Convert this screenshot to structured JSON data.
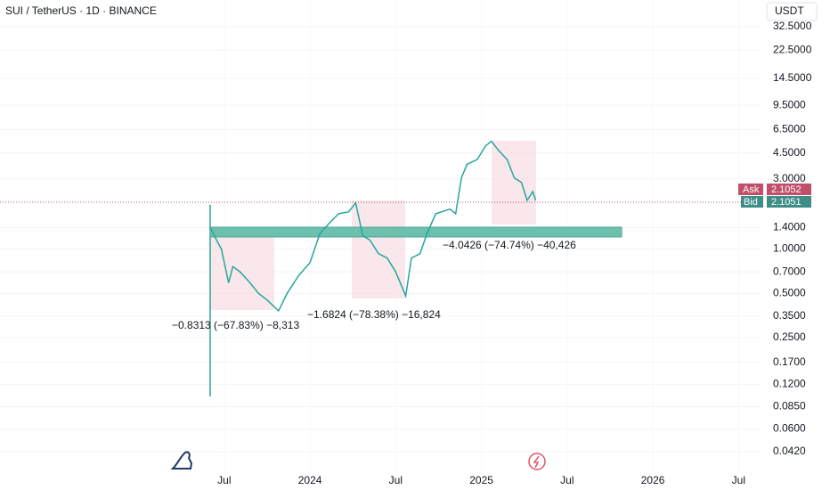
{
  "header": {
    "symbol": "SUI / TetherUS · 1D · BINANCE",
    "currency": "USDT"
  },
  "quote": {
    "ask_label": "Ask",
    "ask": 2.1052,
    "bid_label": "Bid",
    "bid": 2.1051
  },
  "chart_data": {
    "type": "line",
    "log_scale": true,
    "grid": true,
    "annotations": [
      "−0.8313 (−67.83%) −8,313",
      "−1.6824 (−78.38%) −16,824",
      "−4.0426 (−74.74%) −40,426"
    ],
    "x": [
      5.0,
      5.3,
      5.8,
      6.3,
      6.6,
      7.1,
      7.8,
      8.4,
      9.0,
      9.8,
      10.4,
      11.2,
      12.0,
      12.7,
      13.4,
      14.0,
      14.7,
      15.2,
      15.7,
      16.2,
      16.8,
      17.4,
      18.0,
      18.7,
      19.1,
      19.7,
      20.2,
      20.8,
      21.8,
      22.2,
      22.6,
      23.0,
      23.7,
      24.3,
      24.7,
      25.2,
      25.8,
      26.3,
      26.8,
      27.2,
      27.6,
      27.8
    ],
    "series": [
      {
        "color": "#26a69a",
        "values": [
          1.41,
          1.23,
          1.0,
          0.59,
          0.76,
          0.7,
          0.59,
          0.5,
          0.45,
          0.38,
          0.5,
          0.66,
          0.81,
          1.28,
          1.52,
          1.74,
          1.79,
          2.06,
          1.23,
          1.15,
          0.93,
          0.87,
          0.7,
          0.48,
          0.87,
          0.93,
          1.28,
          1.74,
          1.87,
          1.74,
          3.05,
          3.78,
          4.06,
          5.04,
          5.41,
          4.69,
          4.06,
          3.05,
          2.84,
          2.14,
          2.46,
          2.14
        ]
      }
    ],
    "xlim": [
      -9.7,
      43.6
    ],
    "xticks": [
      {
        "value": 6,
        "label": "Jul"
      },
      {
        "value": 12,
        "label": "2024"
      },
      {
        "value": 18,
        "label": "Jul"
      },
      {
        "value": 24,
        "label": "2025"
      },
      {
        "value": 30,
        "label": "Jul"
      },
      {
        "value": 36,
        "label": "2026"
      },
      {
        "value": 42,
        "label": "Jul"
      }
    ],
    "ylim": [
      0.0304,
      49.4
    ],
    "yticks": [
      {
        "value": 32.5,
        "label": "32.5000"
      },
      {
        "value": 22.5,
        "label": "22.5000"
      },
      {
        "value": 14.5,
        "label": "14.5000"
      },
      {
        "value": 9.5,
        "label": "9.5000"
      },
      {
        "value": 6.5,
        "label": "6.5000"
      },
      {
        "value": 4.5,
        "label": "4.5000"
      },
      {
        "value": 3,
        "label": "3.0000"
      },
      {
        "value": 1.4,
        "label": "1.4000"
      },
      {
        "value": 1,
        "label": "1.0000"
      },
      {
        "value": 0.7,
        "label": "0.7000"
      },
      {
        "value": 0.5,
        "label": "0.5000"
      },
      {
        "value": 0.35,
        "label": "0.3500"
      },
      {
        "value": 0.25,
        "label": "0.2500"
      },
      {
        "value": 0.17,
        "label": "0.1700"
      },
      {
        "value": 0.12,
        "label": "0.1200"
      },
      {
        "value": 0.085,
        "label": "0.0850"
      },
      {
        "value": 0.06,
        "label": "0.0600"
      },
      {
        "value": 0.042,
        "label": "0.0420"
      }
    ]
  }
}
